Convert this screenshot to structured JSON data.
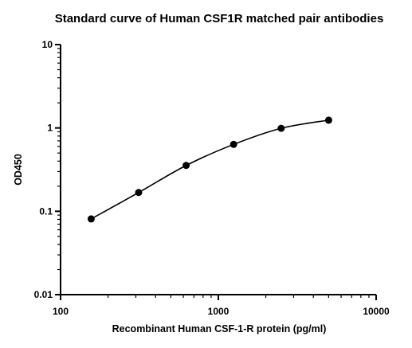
{
  "chart_data": {
    "type": "scatter",
    "title": "Standard curve of Human CSF1R matched pair antibodies",
    "xlabel": "Recombinant Human CSF-1-R protein (pg/ml)",
    "ylabel": "OD450",
    "x_scale": "log",
    "y_scale": "log",
    "xlim": [
      100,
      10000
    ],
    "ylim": [
      0.01,
      10
    ],
    "x_ticks": [
      100,
      1000,
      10000
    ],
    "x_tick_labels": [
      "100",
      "1000",
      "10000"
    ],
    "y_ticks": [
      0.01,
      0.1,
      1,
      10
    ],
    "y_tick_labels": [
      "0.01",
      "0.1",
      "1",
      "10"
    ],
    "grid": false,
    "legend": "none",
    "fitted_curve": true,
    "series": [
      {
        "x": [
          156.25,
          312.5,
          625,
          1250,
          2500,
          5000
        ],
        "y": [
          0.081,
          0.168,
          0.355,
          0.635,
          0.99,
          1.24
        ],
        "color": "#000000"
      }
    ]
  }
}
